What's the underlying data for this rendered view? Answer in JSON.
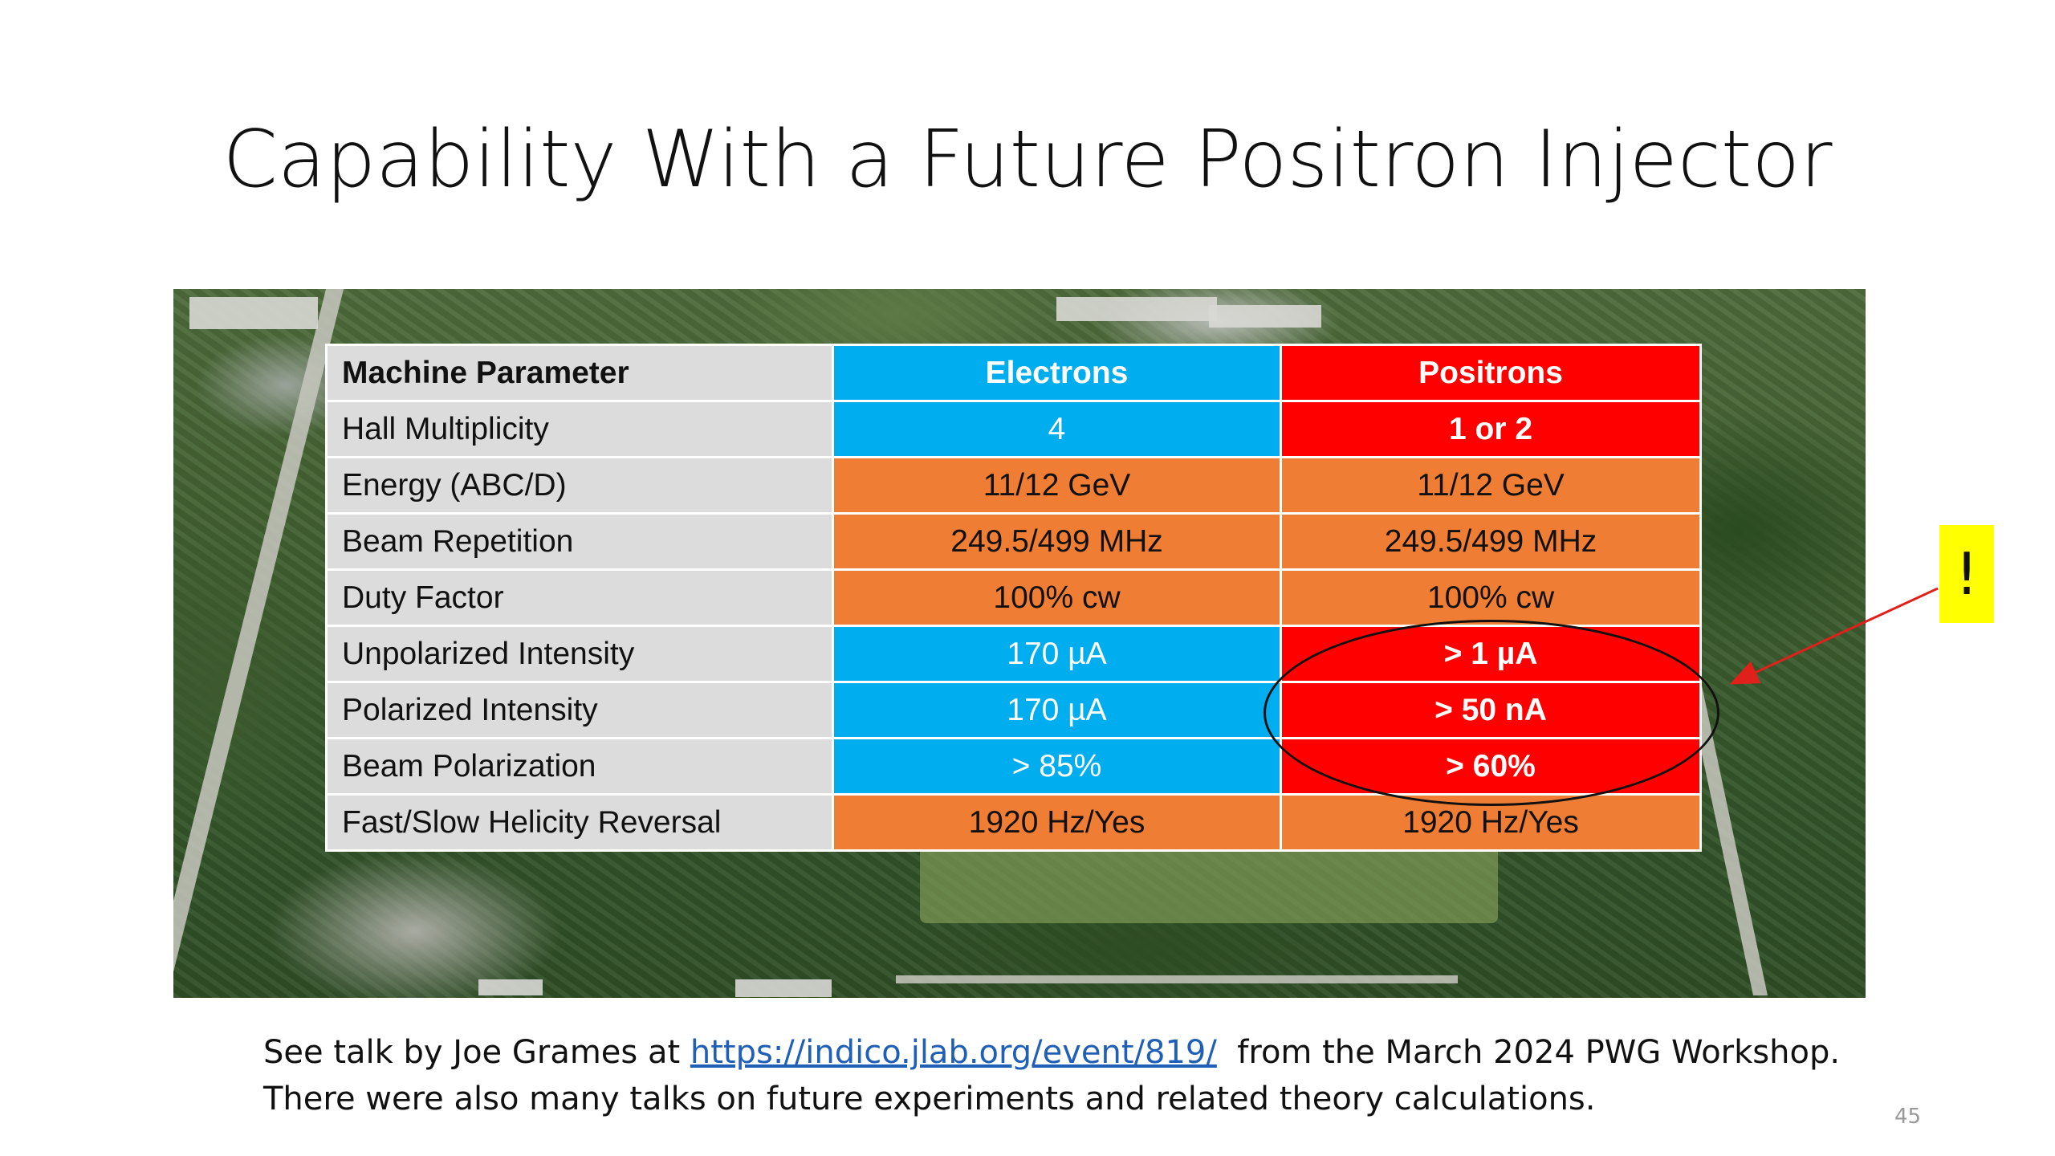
{
  "slide": {
    "title": "Capability With a Future Positron Injector",
    "page_number": "45",
    "callout": "!"
  },
  "table": {
    "headers": [
      "Machine Parameter",
      "Electrons",
      "Positrons"
    ],
    "rows": [
      [
        "Hall Multiplicity",
        "4",
        "1 or 2"
      ],
      [
        "Energy (ABC/D)",
        "11/12 GeV",
        "11/12 GeV"
      ],
      [
        "Beam Repetition",
        "249.5/499 MHz",
        "249.5/499 MHz"
      ],
      [
        "Duty Factor",
        "100% cw",
        "100% cw"
      ],
      [
        "Unpolarized Intensity",
        "170 µA",
        "> 1 µA"
      ],
      [
        "Polarized Intensity",
        "170 µA",
        "> 50 nA"
      ],
      [
        "Beam Polarization",
        "> 85%",
        "> 60%"
      ],
      [
        "Fast/Slow Helicity Reversal",
        "1920 Hz/Yes",
        "1920 Hz/Yes"
      ]
    ]
  },
  "footer": {
    "line1_before": "See talk by Joe Grames at ",
    "link": "https://indico.jlab.org/event/819/",
    "line1_after": "  from the March 2024 PWG Workshop.",
    "line2": "There were also many talks on future experiments and related theory calculations."
  },
  "colors": {
    "electrons": "#00aeef",
    "positrons": "#ff0000",
    "shared": "#ef7d34",
    "parameter": "#dcdcdc",
    "callout": "#ffff00"
  }
}
